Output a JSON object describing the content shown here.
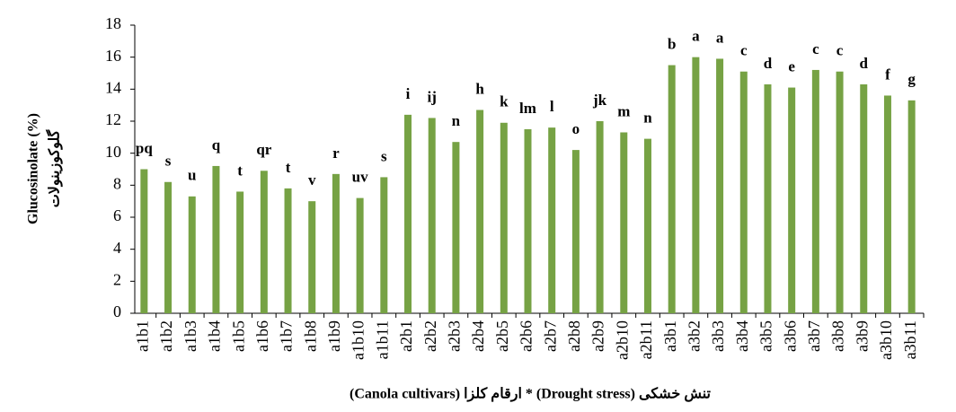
{
  "chart_data": {
    "type": "bar",
    "y_label": "Glucosinolate (%)",
    "y_label_fa": "گلوکوزینولات",
    "x_label": "تنش خشکی (Drought stress) * ارقام کلزا (Canola cultivars)",
    "categories": [
      "a1b1",
      "a1b2",
      "a1b3",
      "a1b4",
      "a1b5",
      "a1b6",
      "a1b7",
      "a1b8",
      "a1b9",
      "a1b10",
      "a1b11",
      "a2b1",
      "a2b2",
      "a2b3",
      "a2b4",
      "a2b5",
      "a2b6",
      "a2b7",
      "a2b8",
      "a2b9",
      "a2b10",
      "a2b11",
      "a3b1",
      "a3b2",
      "a3b3",
      "a3b4",
      "a3b5",
      "a3b6",
      "a3b7",
      "a3b8",
      "a3b9",
      "a3b10",
      "a3b11"
    ],
    "values": [
      9.0,
      8.2,
      7.3,
      9.2,
      7.6,
      8.9,
      7.8,
      7.0,
      8.7,
      7.2,
      8.5,
      12.4,
      12.2,
      10.7,
      12.7,
      11.9,
      11.5,
      11.6,
      10.2,
      12.0,
      11.3,
      10.9,
      15.5,
      16.0,
      15.9,
      15.1,
      14.3,
      14.1,
      15.2,
      15.1,
      14.3,
      13.6,
      13.3
    ],
    "significance_letters": [
      "pq",
      "s",
      "u",
      "q",
      "t",
      "qr",
      "t",
      "v",
      "r",
      "uv",
      "s",
      "i",
      "ij",
      "n",
      "h",
      "k",
      "lm",
      "l",
      "o",
      "jk",
      "m",
      "n",
      "b",
      "a",
      "a",
      "c",
      "d",
      "e",
      "c",
      "c",
      "d",
      "f",
      "g"
    ],
    "color": "#76a244",
    "ylim": [
      0,
      18
    ],
    "yticks": [
      0,
      2,
      4,
      6,
      8,
      10,
      12,
      14,
      16,
      18
    ],
    "grid": false
  }
}
